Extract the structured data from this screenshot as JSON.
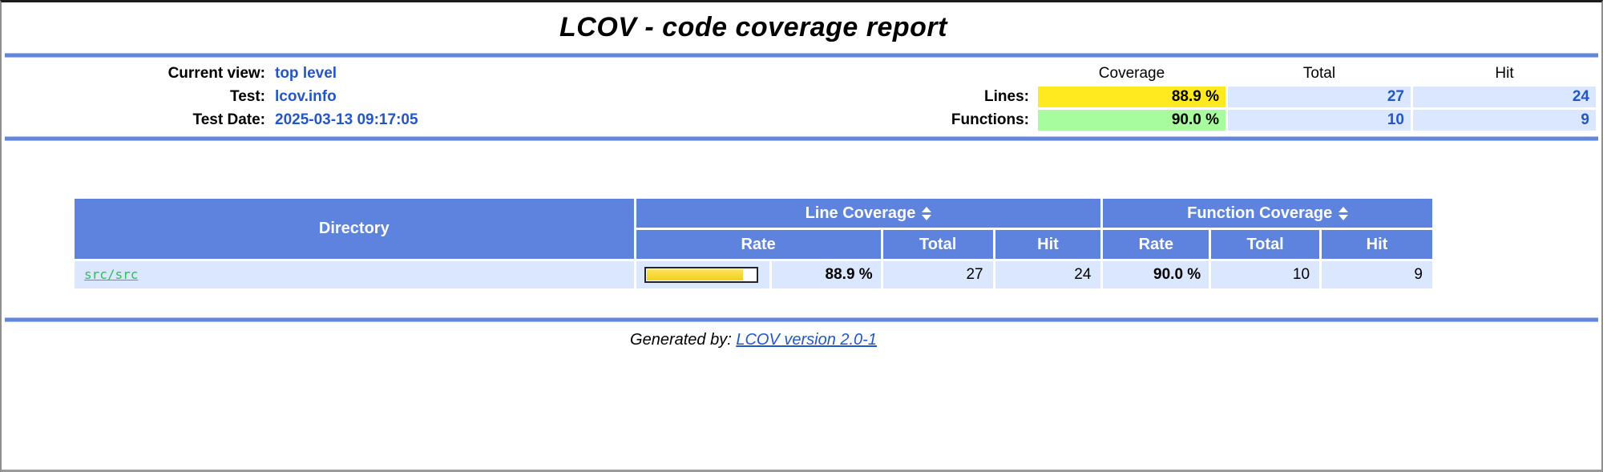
{
  "page": {
    "title": "LCOV - code coverage report",
    "footer_prefix": "Generated by:",
    "footer_link": "LCOV version 2.0-1"
  },
  "header_info": {
    "rows": [
      {
        "label": "Current view:",
        "value": "top level"
      },
      {
        "label": "Test:",
        "value": "lcov.info"
      },
      {
        "label": "Test Date:",
        "value": "2025-03-13 09:17:05"
      }
    ],
    "summary": {
      "columns": {
        "coverage": "Coverage",
        "total": "Total",
        "hit": "Hit"
      },
      "lines": {
        "label": "Lines:",
        "coverage": "88.9 %",
        "total": "27",
        "hit": "24",
        "level": "medium"
      },
      "functions": {
        "label": "Functions:",
        "coverage": "90.0 %",
        "total": "10",
        "hit": "9",
        "level": "high"
      }
    }
  },
  "table": {
    "headers": {
      "directory": "Directory",
      "line_coverage": "Line Coverage",
      "function_coverage": "Function Coverage",
      "rate": "Rate",
      "total": "Total",
      "hit": "Hit"
    },
    "rows": [
      {
        "directory": "src/src",
        "line_rate": "88.9 %",
        "line_rate_pct": 88.9,
        "line_total": "27",
        "line_hit": "24",
        "func_rate": "90.0 %",
        "func_total": "10",
        "func_hit": "9"
      }
    ]
  },
  "icons": {
    "sort": "sort-updown-icon"
  },
  "colors": {
    "table_head_blue": "#5e83df",
    "light_blue": "#dae7fe",
    "medium_yellow": "#ffea20",
    "high_green": "#a7fc9d",
    "value_blue": "#2456c8",
    "dir_link_green": "#2ebe56",
    "ruler_blue": "#6286dc",
    "bar_fill_yellow": "#f7d835"
  }
}
